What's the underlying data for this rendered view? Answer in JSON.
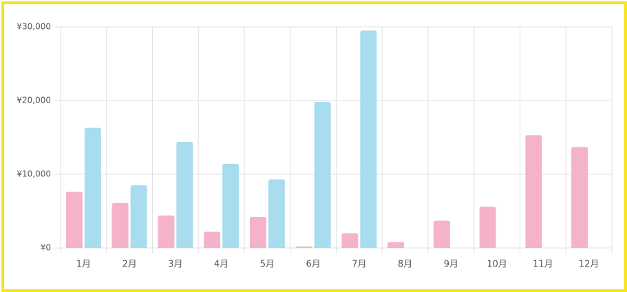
{
  "chart_data": {
    "type": "bar",
    "categories": [
      "1月",
      "2月",
      "3月",
      "4月",
      "5月",
      "6月",
      "7月",
      "8月",
      "9月",
      "10月",
      "11月",
      "12月"
    ],
    "series": [
      {
        "color": "#f4b3cb",
        "values": [
          7600,
          6100,
          4400,
          2200,
          4200,
          200,
          2000,
          800,
          3700,
          5600,
          15300,
          13700
        ]
      },
      {
        "color": "#a8dcef",
        "values": [
          16300,
          8500,
          14400,
          11400,
          9300,
          19800,
          29500,
          0,
          0,
          0,
          0,
          0
        ]
      }
    ],
    "ylim": [
      0,
      30000
    ],
    "yticks": [
      {
        "value": 0,
        "label": "¥0"
      },
      {
        "value": 10000,
        "label": "¥10,000"
      },
      {
        "value": 20000,
        "label": "¥20,000"
      },
      {
        "value": 30000,
        "label": "¥30,000"
      }
    ],
    "grid": true
  }
}
